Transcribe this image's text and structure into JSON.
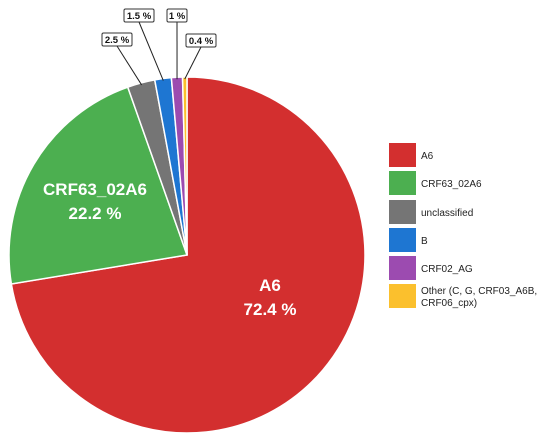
{
  "chart_data": {
    "type": "pie",
    "title": "",
    "slices": [
      {
        "name": "A6",
        "value": 72.4,
        "label": "72.4 %",
        "color": "#d32f2f",
        "label_style": "inside"
      },
      {
        "name": "CRF63_02A6",
        "value": 22.2,
        "label": "22.2 %",
        "color": "#4caf50",
        "label_style": "inside"
      },
      {
        "name": "unclassified",
        "value": 2.5,
        "label": "2.5 %",
        "color": "#757575",
        "label_style": "callout"
      },
      {
        "name": "B",
        "value": 1.5,
        "label": "1.5 %",
        "color": "#1e76d2",
        "label_style": "callout"
      },
      {
        "name": "CRF02_AG",
        "value": 1,
        "label": "1 %",
        "color": "#9c4bb0",
        "label_style": "callout"
      },
      {
        "name": "Other (C, G, CRF03_A6B, CRF06_cpx)",
        "value": 0.4,
        "label": "0.4 %",
        "color": "#fbc02d",
        "label_style": "callout"
      }
    ],
    "legend": {
      "position": "right",
      "entries": [
        {
          "lines": [
            "A6"
          ],
          "color": "#d32f2f"
        },
        {
          "lines": [
            "CRF63_02A6"
          ],
          "color": "#4caf50"
        },
        {
          "lines": [
            "unclassified"
          ],
          "color": "#757575"
        },
        {
          "lines": [
            "B"
          ],
          "color": "#1e76d2"
        },
        {
          "lines": [
            "CRF02_AG"
          ],
          "color": "#9c4bb0"
        },
        {
          "lines": [
            "Other (C, G, CRF03_A6B,",
            "CRF06_cpx)"
          ],
          "color": "#fbc02d"
        }
      ]
    }
  }
}
